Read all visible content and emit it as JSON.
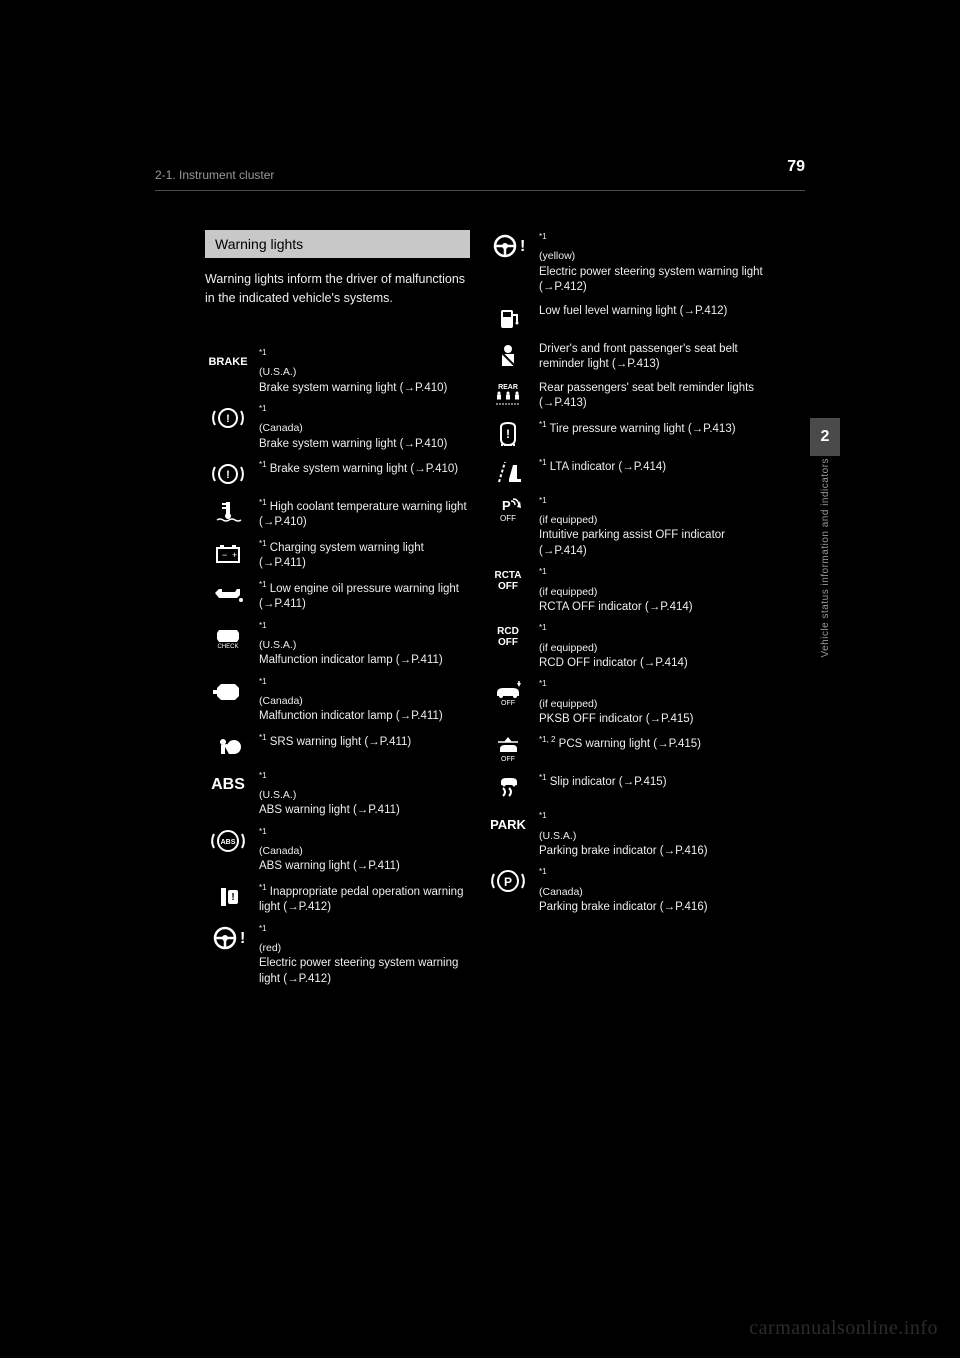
{
  "page_number": "79",
  "header_text": "2-1. Instrument cluster",
  "side_tab_number": "2",
  "side_tab_label": "Vehicle status information and indicators",
  "section_title": "Warning lights",
  "intro": "Warning lights inform the driver of malfunctions in the indicated vehicle's systems.",
  "watermark": "carmanualsonline.info",
  "left": [
    {
      "icon_label": "BRAKE",
      "sup": "*1",
      "region": "(U.S.A.)",
      "desc": "Brake system warning light (→P.410)"
    },
    {
      "icon_label": "BRAKE_CIRCLE",
      "sup": "*1",
      "region": "(Canada)",
      "desc": "Brake system warning light (→P.410)"
    },
    {
      "icon_label": "BRAKE_CIRCLE_Y",
      "sup": "*1",
      "region": "",
      "desc": "Brake system warning light (→P.410)"
    },
    {
      "icon_label": "COOLANT",
      "sup": "*1",
      "region": "",
      "desc": "High coolant temperature warning light (→P.410)"
    },
    {
      "icon_label": "BATTERY",
      "sup": "*1",
      "region": "",
      "desc": "Charging system warning light (→P.411)"
    },
    {
      "icon_label": "OIL",
      "sup": "*1",
      "region": "",
      "desc": "Low engine oil pressure warning light (→P.411)"
    },
    {
      "icon_label": "CHECK_ENGINE",
      "sup": "*1",
      "region": "(U.S.A.)",
      "desc": "Malfunction indicator lamp (→P.411)"
    },
    {
      "icon_label": "ENGINE",
      "sup": "*1",
      "region": "(Canada)",
      "desc": "Malfunction indicator lamp (→P.411)"
    },
    {
      "icon_label": "SRS",
      "sup": "*1",
      "region": "",
      "desc": "SRS warning light (→P.411)"
    },
    {
      "icon_label": "ABS",
      "sup": "*1",
      "region": "(U.S.A.)",
      "desc": "ABS warning light (→P.411)"
    },
    {
      "icon_label": "ABS_CIRCLE",
      "sup": "*1",
      "region": "(Canada)",
      "desc": "ABS warning light (→P.411)"
    },
    {
      "icon_label": "INFLATOR",
      "sup": "*1",
      "region": "",
      "desc": "Inappropriate pedal operation warning light (→P.412)"
    },
    {
      "icon_label": "EPS_R",
      "sup": "*1",
      "region": "(red)",
      "desc": "Electric power steering system warning light (→P.412)"
    }
  ],
  "right": [
    {
      "icon_label": "EPS_Y",
      "sup": "*1",
      "region": "(yellow)",
      "desc": "Electric power steering system warning light (→P.412)"
    },
    {
      "icon_label": "FUEL",
      "sup": "",
      "region": "",
      "desc": "Low fuel level warning light (→P.412)"
    },
    {
      "icon_label": "SEATBELT",
      "sup": "",
      "region": "",
      "desc": "Driver's and front passenger's seat belt reminder light (→P.413)"
    },
    {
      "icon_label": "REAR_SEAT",
      "sup": "",
      "region": "",
      "desc": "Rear passengers' seat belt reminder lights (→P.413)"
    },
    {
      "icon_label": "TIRE",
      "sup": "*1",
      "region": "",
      "desc": "Tire pressure warning light (→P.413)"
    },
    {
      "icon_label": "LTA",
      "sup": "*1",
      "region": "",
      "desc": "LTA indicator (→P.414)"
    },
    {
      "icon_label": "P_OFF",
      "sup": "*1",
      "region": "(if equipped)",
      "desc": "Intuitive parking assist OFF indicator (→P.414)"
    },
    {
      "icon_label": "RCTA_OFF",
      "sup": "*1",
      "region": "(if equipped)",
      "desc": "RCTA OFF indicator (→P.414)"
    },
    {
      "icon_label": "RCD_OFF",
      "sup": "*1",
      "region": "(if equipped)",
      "desc": "RCD OFF indicator (→P.414)"
    },
    {
      "icon_label": "PKSB_OFF",
      "sup": "*1",
      "region": "(if equipped)",
      "desc": "PKSB OFF indicator (→P.415)"
    },
    {
      "icon_label": "PCS_OFF",
      "sup": "*1, 2",
      "region": "",
      "desc": "PCS warning light (→P.415)"
    },
    {
      "icon_label": "SLIP",
      "sup": "*1",
      "region": "",
      "desc": "Slip indicator (→P.415)"
    },
    {
      "icon_label": "PARK",
      "sup": "*1",
      "region": "(U.S.A.)",
      "desc": "Parking brake indicator (→P.416)"
    },
    {
      "icon_label": "PARK_C",
      "sup": "*1",
      "region": "(Canada)",
      "desc": "Parking brake indicator (→P.416)"
    }
  ]
}
